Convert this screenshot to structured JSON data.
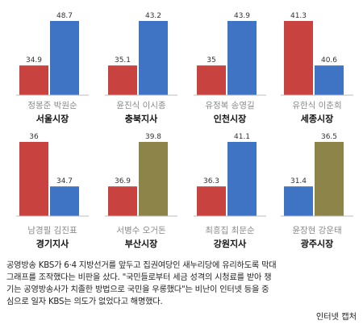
{
  "colors": {
    "red": "#c8423f",
    "blue": "#3f74c4",
    "olive": "#8c8448"
  },
  "chart_data": [
    {
      "type": "bar",
      "region": "서울시장",
      "categories": [
        "정몽준",
        "박원순"
      ],
      "values": [
        34.9,
        48.7
      ],
      "colors": [
        "red",
        "blue"
      ]
    },
    {
      "type": "bar",
      "region": "충북지사",
      "categories": [
        "윤진식",
        "이시종"
      ],
      "values": [
        35.1,
        43.2
      ],
      "colors": [
        "red",
        "blue"
      ]
    },
    {
      "type": "bar",
      "region": "인천시장",
      "categories": [
        "유정복",
        "송영길"
      ],
      "values": [
        35,
        43.9
      ],
      "colors": [
        "red",
        "blue"
      ]
    },
    {
      "type": "bar",
      "region": "세종시장",
      "categories": [
        "유한식",
        "이춘희"
      ],
      "values": [
        41.3,
        40.6
      ],
      "colors": [
        "red",
        "blue"
      ]
    },
    {
      "type": "bar",
      "region": "경기지사",
      "categories": [
        "남경필",
        "김진표"
      ],
      "values": [
        36,
        34.7
      ],
      "colors": [
        "red",
        "blue"
      ]
    },
    {
      "type": "bar",
      "region": "부산시장",
      "categories": [
        "서병수",
        "오거돈"
      ],
      "values": [
        36.9,
        39.8
      ],
      "colors": [
        "red",
        "olive"
      ]
    },
    {
      "type": "bar",
      "region": "강원지사",
      "categories": [
        "최흥집",
        "최문순"
      ],
      "values": [
        36.3,
        41.1
      ],
      "colors": [
        "red",
        "blue"
      ]
    },
    {
      "type": "bar",
      "region": "광주시장",
      "categories": [
        "윤장현",
        "강운태"
      ],
      "values": [
        31.4,
        36.5
      ],
      "colors": [
        "blue",
        "olive"
      ]
    }
  ],
  "caption": {
    "lines": [
      "공영방송 KBS가 6·4 지방선거를 앞두고 집권여당인 새누리당에 유리하도록 막대",
      "그래프를 조작했다는 비판을 샀다. \"국민들로부터 세금 성격의 시청료를 받아 챙",
      "기는 공영방송사가 치졸한 방법으로 국민을 우롱했다\"는 비난이 인터넷 등을 중",
      "심으로 일자 KBS는 의도가 없었다고 해명했다."
    ],
    "credit": "인터넷 캡처"
  }
}
